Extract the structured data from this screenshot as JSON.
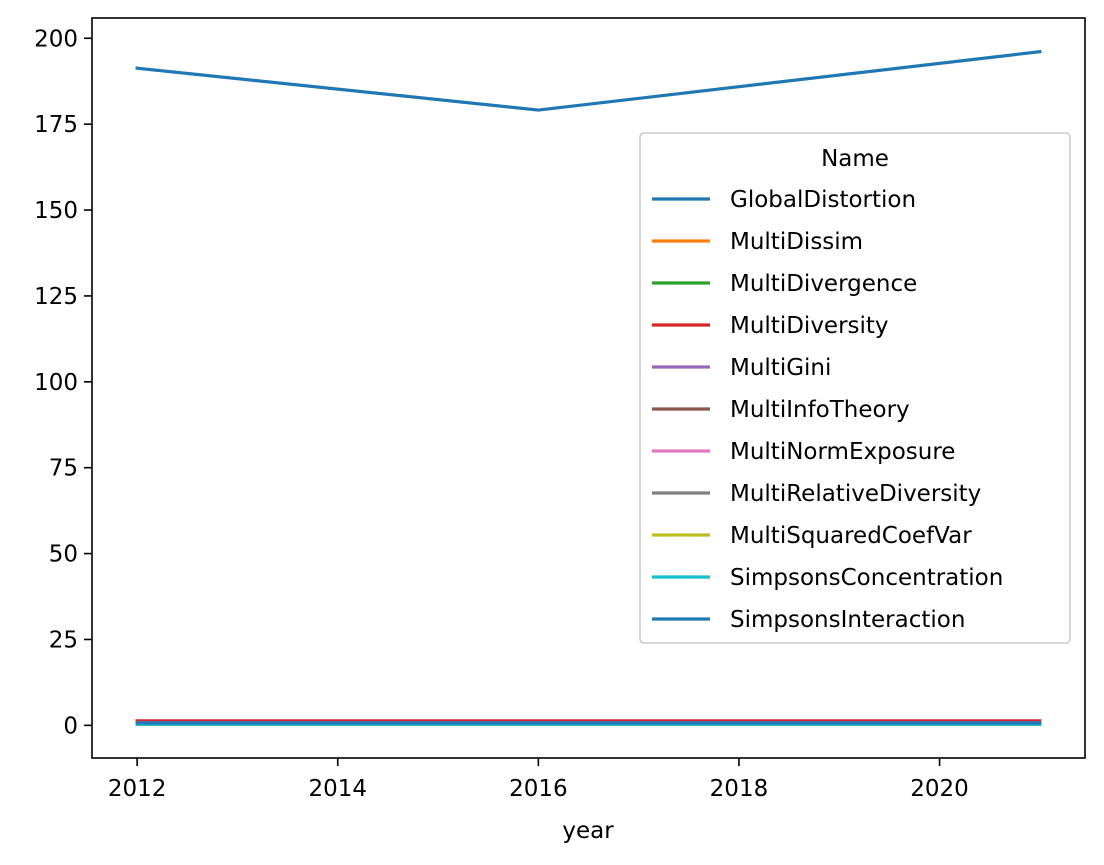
{
  "chart_data": {
    "type": "line",
    "title": "",
    "xlabel": "year",
    "ylabel": "",
    "xlim": [
      2011.55,
      2021.45
    ],
    "ylim": [
      -9.5,
      205.9
    ],
    "x_ticks": [
      2012,
      2014,
      2016,
      2018,
      2020
    ],
    "x_tick_labels": [
      "2012",
      "2014",
      "2016",
      "2018",
      "2020"
    ],
    "y_ticks": [
      0,
      25,
      50,
      75,
      100,
      125,
      150,
      175,
      200
    ],
    "y_tick_labels": [
      "0",
      "25",
      "50",
      "75",
      "100",
      "125",
      "150",
      "175",
      "200"
    ],
    "grid": false,
    "x": [
      2012,
      2016,
      2021
    ],
    "legend": {
      "title": "Name",
      "placement": "right"
    },
    "series": [
      {
        "name": "GlobalDistortion",
        "color": "#1f77b4",
        "values": [
          191.3,
          179.1,
          196.1
        ]
      },
      {
        "name": "MultiDissim",
        "color": "#ff7f0e",
        "values": [
          0.6,
          0.6,
          0.6
        ]
      },
      {
        "name": "MultiDivergence",
        "color": "#2ca02c",
        "values": [
          0.3,
          0.3,
          0.3
        ]
      },
      {
        "name": "MultiDiversity",
        "color": "#d62728",
        "values": [
          1.3,
          1.3,
          1.3
        ]
      },
      {
        "name": "MultiGini",
        "color": "#9467bd",
        "values": [
          0.8,
          0.8,
          0.8
        ]
      },
      {
        "name": "MultiInfoTheory",
        "color": "#8c564b",
        "values": [
          0.3,
          0.3,
          0.3
        ]
      },
      {
        "name": "MultiNormExposure",
        "color": "#e377c2",
        "values": [
          0.3,
          0.3,
          0.3
        ]
      },
      {
        "name": "MultiRelativeDiversity",
        "color": "#7f7f7f",
        "values": [
          0.4,
          0.4,
          0.4
        ]
      },
      {
        "name": "MultiSquaredCoefVar",
        "color": "#bcbd22",
        "values": [
          0.3,
          0.3,
          0.3
        ]
      },
      {
        "name": "SimpsonsConcentration",
        "color": "#17becf",
        "values": [
          0.3,
          0.3,
          0.3
        ]
      },
      {
        "name": "SimpsonsInteraction",
        "color": "#1f77b4",
        "values": [
          0.7,
          0.7,
          0.7
        ]
      }
    ]
  }
}
